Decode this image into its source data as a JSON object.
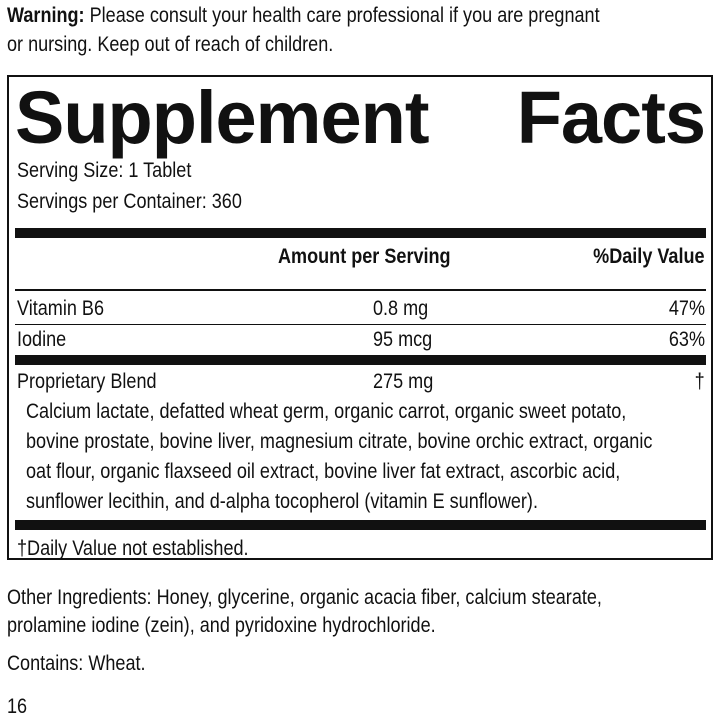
{
  "warning": {
    "label": "Warning:",
    "text": " Please consult your health care professional if you are pregnant",
    "text2": "or nursing. Keep out of reach of children."
  },
  "facts": {
    "title_left": "Supplement",
    "title_right": "Facts",
    "serving_size": "Serving Size: 1 Tablet",
    "servings_per_container": "Servings per Container: 360",
    "header": {
      "amount": "Amount per Serving",
      "dv": "%Daily Value"
    },
    "rows": [
      {
        "name": "Vitamin B6",
        "amount": "0.8 mg",
        "dv": "47%"
      },
      {
        "name": "Iodine",
        "amount": "95 mcg",
        "dv": "63%"
      },
      {
        "name": "Proprietary Blend",
        "amount": "275 mg",
        "dv": "†"
      }
    ],
    "blend_lines": [
      "Calcium lactate, defatted wheat germ, organic carrot, organic sweet potato,",
      "bovine prostate, bovine liver, magnesium citrate, bovine orchic extract, organic",
      "oat flour, organic flaxseed oil extract, bovine liver fat extract, ascorbic acid,",
      "sunflower lecithin, and d-alpha tocopherol (vitamin E sunflower)."
    ],
    "footnote": "†Daily Value not established."
  },
  "other": {
    "line1": "Other Ingredients: Honey, glycerine, organic acacia fiber, calcium stearate,",
    "line2": "prolamine iodine (zein), and pyridoxine hydrochloride."
  },
  "contains": "Contains: Wheat.",
  "page_number": "16"
}
